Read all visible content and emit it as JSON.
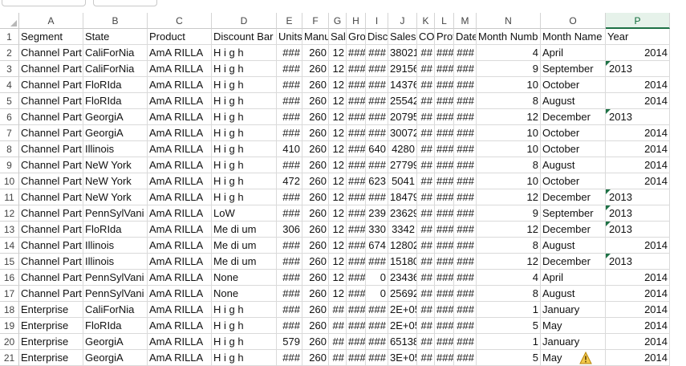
{
  "columns": [
    "A",
    "B",
    "C",
    "D",
    "E",
    "F",
    "G",
    "H",
    "I",
    "J",
    "K",
    "L",
    "M",
    "N",
    "O",
    "P"
  ],
  "selected_column": "P",
  "rows": [
    [
      "Segment",
      "State",
      "Product",
      "Discount Bar",
      "Units",
      "Manu",
      "Sal",
      "Gros",
      "Disc",
      "Sales",
      "CO",
      "Prof",
      "Date",
      "Month Numb",
      "Month Name",
      "Year"
    ],
    [
      "Channel Part",
      "CaliForNia",
      "AmA RILLA",
      "H i g h",
      "###",
      "260",
      "12",
      "###",
      "###",
      "38021",
      "##",
      "###",
      "###",
      "4",
      "April",
      "2014"
    ],
    [
      "Channel Part",
      "CaliForNia",
      "AmA RILLA",
      "H i g h",
      "###",
      "260",
      "12",
      "###",
      "###",
      "29156",
      "##",
      "###",
      "###",
      "9",
      "September",
      "2013"
    ],
    [
      "Channel Part",
      "FloRIda",
      "AmA RILLA",
      "H i g h",
      "###",
      "260",
      "12",
      "###",
      "###",
      "14376",
      "##",
      "###",
      "###",
      "10",
      "October",
      "2014"
    ],
    [
      "Channel Part",
      "FloRIda",
      "AmA RILLA",
      "H i g h",
      "###",
      "260",
      "12",
      "###",
      "###",
      "25542",
      "##",
      "###",
      "###",
      "8",
      "August",
      "2014"
    ],
    [
      "Channel Part",
      "GeorgiA",
      "AmA RILLA",
      "H i g h",
      "###",
      "260",
      "12",
      "###",
      "###",
      "20795",
      "##",
      "###",
      "###",
      "12",
      "December",
      "2013"
    ],
    [
      "Channel Part",
      "GeorgiA",
      "AmA RILLA",
      "H i g h",
      "###",
      "260",
      "12",
      "###",
      "###",
      "30072",
      "##",
      "###",
      "###",
      "10",
      "October",
      "2014"
    ],
    [
      "Channel Part",
      "Illinois",
      "AmA RILLA",
      "H i g h",
      "410",
      "260",
      "12",
      "###",
      "640",
      "4280",
      "##",
      "###",
      "###",
      "10",
      "October",
      "2014"
    ],
    [
      "Channel Part",
      "NeW York",
      "AmA RILLA",
      "H i g h",
      "###",
      "260",
      "12",
      "###",
      "###",
      "27799",
      "##",
      "###",
      "###",
      "8",
      "August",
      "2014"
    ],
    [
      "Channel Part",
      "NeW York",
      "AmA RILLA",
      "H i g h",
      "472",
      "260",
      "12",
      "###",
      "623",
      "5041",
      "##",
      "###",
      "###",
      "10",
      "October",
      "2014"
    ],
    [
      "Channel Part",
      "NeW York",
      "AmA RILLA",
      "H i g h",
      "###",
      "260",
      "12",
      "###",
      "###",
      "18479",
      "##",
      "###",
      "###",
      "12",
      "December",
      "2013"
    ],
    [
      "Channel Part",
      "PennSylVani",
      "AmA RILLA",
      "LoW",
      "###",
      "260",
      "12",
      "###",
      "239",
      "23629",
      "##",
      "###",
      "###",
      "9",
      "September",
      "2013"
    ],
    [
      "Channel Part",
      "FloRIda",
      "AmA RILLA",
      "Me di um",
      "306",
      "260",
      "12",
      "###",
      "330",
      "3342",
      "##",
      "###",
      "###",
      "12",
      "December",
      "2013"
    ],
    [
      "Channel Part",
      "Illinois",
      "AmA RILLA",
      "Me di um",
      "###",
      "260",
      "12",
      "###",
      "674",
      "12802",
      "##",
      "###",
      "###",
      "8",
      "August",
      "2014"
    ],
    [
      "Channel Part",
      "Illinois",
      "AmA RILLA",
      "Me di um",
      "###",
      "260",
      "12",
      "###",
      "###",
      "15180",
      "##",
      "###",
      "###",
      "12",
      "December",
      "2013"
    ],
    [
      "Channel Part",
      "PennSylVani",
      "AmA RILLA",
      "None",
      "###",
      "260",
      "12",
      "###",
      "0",
      "23436",
      "##",
      "###",
      "###",
      "4",
      "April",
      "2014"
    ],
    [
      "Channel Part",
      "PennSylVani",
      "AmA RILLA",
      "None",
      "###",
      "260",
      "12",
      "###",
      "0",
      "25692",
      "##",
      "###",
      "###",
      "8",
      "August",
      "2014"
    ],
    [
      "Enterprise",
      "CaliForNia",
      "AmA RILLA",
      "H i g h",
      "###",
      "260",
      "##",
      "###",
      "###",
      "2E+05",
      "##",
      "###",
      "###",
      "1",
      "January",
      "2014"
    ],
    [
      "Enterprise",
      "FloRIda",
      "AmA RILLA",
      "H i g h",
      "###",
      "260",
      "##",
      "###",
      "###",
      "2E+05",
      "##",
      "###",
      "###",
      "5",
      "May",
      "2014"
    ],
    [
      "Enterprise",
      "GeorgiA",
      "AmA RILLA",
      "H i g h",
      "579",
      "260",
      "##",
      "###",
      "###",
      "65138",
      "##",
      "###",
      "###",
      "1",
      "January",
      "2014"
    ],
    [
      "Enterprise",
      "GeorgiA",
      "AmA RILLA",
      "H i g h",
      "###",
      "260",
      "##",
      "###",
      "###",
      "3E+05",
      "##",
      "###",
      "###",
      "5",
      "May",
      "2014"
    ]
  ],
  "text_years_rows": [
    3,
    6,
    11,
    12,
    13,
    15
  ],
  "warning_row": 21,
  "icons": {
    "warning": "warning-icon",
    "error_indicator": "green-triangle-indicator"
  },
  "colors": {
    "accent": "#1e7145",
    "selected_header_bg": "#e6f2ea",
    "gridline": "#dadada"
  }
}
